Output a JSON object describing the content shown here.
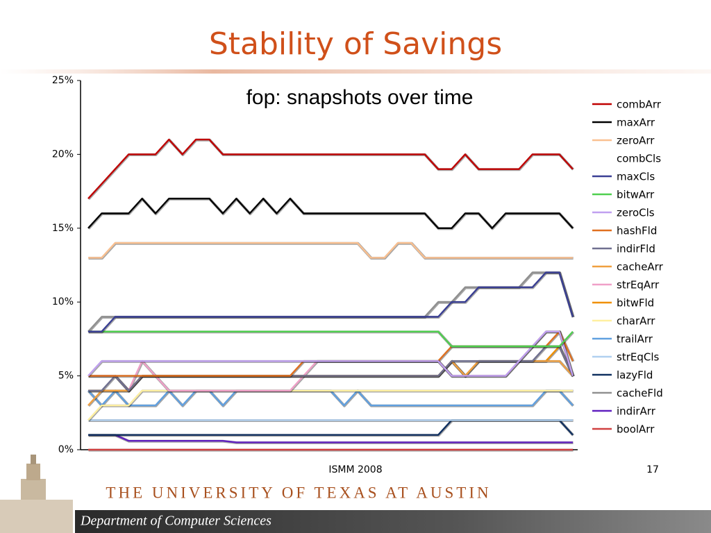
{
  "slide": {
    "title": "Stability of Savings",
    "footer": "ISMM 2008",
    "page_number": "17",
    "university": "THE UNIVERSITY OF TEXAS AT AUSTIN",
    "department": "Department of Computer Sciences"
  },
  "chart_data": {
    "type": "line",
    "title": "fop: snapshots over time",
    "categories": [
      null,
      null,
      null,
      null,
      null,
      null,
      null,
      null,
      null,
      null,
      null,
      null,
      null,
      null,
      null,
      null,
      null,
      null,
      null,
      null,
      null,
      null,
      null,
      null,
      null,
      null,
      null,
      null,
      null,
      null,
      null,
      null,
      null,
      null,
      null,
      null,
      null
    ],
    "ylim": [
      0,
      25
    ],
    "yticks": [
      {
        "value": 0,
        "label": "0%"
      },
      {
        "value": 5,
        "label": "5%"
      },
      {
        "value": 10,
        "label": "10%"
      },
      {
        "value": 15,
        "label": "15%"
      },
      {
        "value": 20,
        "label": "20%"
      },
      {
        "value": 25,
        "label": "25%"
      }
    ],
    "legend": "right",
    "series": [
      {
        "name": "combArr",
        "color": "#c00000",
        "values": [
          17,
          18,
          19,
          20,
          20,
          20,
          21,
          20,
          21,
          21,
          20,
          20,
          20,
          20,
          20,
          20,
          20,
          20,
          20,
          20,
          20,
          20,
          20,
          20,
          20,
          20,
          19,
          19,
          20,
          19,
          19,
          19,
          19,
          20,
          20,
          20,
          19
        ]
      },
      {
        "name": "maxArr",
        "color": "#000000",
        "values": [
          15,
          16,
          16,
          16,
          17,
          16,
          17,
          17,
          17,
          17,
          16,
          17,
          16,
          17,
          16,
          17,
          16,
          16,
          16,
          16,
          16,
          16,
          16,
          16,
          16,
          16,
          15,
          15,
          16,
          16,
          15,
          16,
          16,
          16,
          16,
          16,
          15
        ]
      },
      {
        "name": "zeroArr",
        "color": "#fac090",
        "values": [
          13,
          13,
          14,
          14,
          14,
          14,
          14,
          14,
          14,
          14,
          14,
          14,
          14,
          14,
          14,
          14,
          14,
          14,
          14,
          14,
          14,
          13,
          13,
          14,
          14,
          13,
          13,
          13,
          13,
          13,
          13,
          13,
          13,
          13,
          13,
          13,
          13
        ]
      },
      {
        "name": "combCls",
        "color": "#ffffff",
        "values": [
          null,
          null,
          null,
          null,
          null,
          null,
          null,
          null,
          null,
          null,
          null,
          null,
          null,
          null,
          null,
          null,
          null,
          null,
          null,
          null,
          null,
          null,
          null,
          null,
          null,
          null,
          null,
          null,
          null,
          null,
          null,
          null,
          null,
          null,
          null,
          null,
          null
        ]
      },
      {
        "name": "maxCls",
        "color": "#3a3f94",
        "values": [
          8,
          8,
          9,
          9,
          9,
          9,
          9,
          9,
          9,
          9,
          9,
          9,
          9,
          9,
          9,
          9,
          9,
          9,
          9,
          9,
          9,
          9,
          9,
          9,
          9,
          9,
          9,
          10,
          10,
          11,
          11,
          11,
          11,
          11,
          12,
          12,
          9
        ]
      },
      {
        "name": "bitwArr",
        "color": "#4fcf4f",
        "values": [
          8,
          8,
          8,
          8,
          8,
          8,
          8,
          8,
          8,
          8,
          8,
          8,
          8,
          8,
          8,
          8,
          8,
          8,
          8,
          8,
          8,
          8,
          8,
          8,
          8,
          8,
          8,
          7,
          7,
          7,
          7,
          7,
          7,
          7,
          7,
          7,
          8
        ]
      },
      {
        "name": "zeroCls",
        "color": "#c0a0f0",
        "values": [
          5,
          6,
          6,
          6,
          6,
          6,
          6,
          6,
          6,
          6,
          6,
          6,
          6,
          6,
          6,
          6,
          6,
          6,
          6,
          6,
          6,
          6,
          6,
          6,
          6,
          6,
          6,
          5,
          5,
          5,
          5,
          5,
          6,
          7,
          8,
          8,
          5
        ]
      },
      {
        "name": "hashFld",
        "color": "#e07020",
        "values": [
          5,
          5,
          5,
          5,
          5,
          5,
          5,
          5,
          5,
          5,
          5,
          5,
          5,
          5,
          5,
          5,
          6,
          6,
          6,
          6,
          6,
          6,
          6,
          6,
          6,
          6,
          6,
          7,
          7,
          7,
          7,
          7,
          7,
          7,
          7,
          8,
          6
        ]
      },
      {
        "name": "indirFld",
        "color": "#707090",
        "values": [
          4,
          4,
          5,
          4,
          5,
          5,
          5,
          5,
          5,
          5,
          5,
          5,
          5,
          5,
          5,
          5,
          5,
          5,
          5,
          5,
          5,
          5,
          5,
          5,
          5,
          5,
          5,
          6,
          6,
          6,
          6,
          6,
          6,
          6,
          7,
          7,
          5
        ]
      },
      {
        "name": "cacheArr",
        "color": "#f0a040",
        "values": [
          3,
          4,
          4,
          4,
          5,
          5,
          5,
          5,
          5,
          5,
          5,
          5,
          5,
          5,
          5,
          5,
          5,
          5,
          5,
          5,
          5,
          5,
          5,
          5,
          5,
          5,
          5,
          6,
          5,
          6,
          6,
          6,
          6,
          6,
          6,
          6,
          5
        ]
      },
      {
        "name": "strEqArr",
        "color": "#f0a0c8",
        "values": [
          5,
          5,
          5,
          4,
          6,
          5,
          4,
          4,
          4,
          4,
          4,
          4,
          4,
          4,
          4,
          4,
          5,
          6,
          6,
          6,
          6,
          6,
          6,
          6,
          6,
          6,
          6,
          5,
          5,
          5,
          5,
          5,
          6,
          7,
          8,
          8,
          5
        ]
      },
      {
        "name": "bitwFld",
        "color": "#f09000",
        "values": [
          4,
          4,
          4,
          4,
          5,
          5,
          5,
          5,
          5,
          5,
          5,
          5,
          5,
          5,
          5,
          5,
          5,
          5,
          5,
          5,
          5,
          5,
          5,
          5,
          5,
          5,
          5,
          6,
          5,
          6,
          6,
          6,
          6,
          6,
          6,
          7,
          5
        ]
      },
      {
        "name": "charArr",
        "color": "#fff0a0",
        "values": [
          2,
          3,
          3,
          3,
          4,
          4,
          4,
          4,
          4,
          4,
          4,
          4,
          4,
          4,
          4,
          4,
          4,
          4,
          4,
          4,
          4,
          4,
          4,
          4,
          4,
          4,
          4,
          4,
          4,
          4,
          4,
          4,
          4,
          4,
          4,
          4,
          4
        ]
      },
      {
        "name": "trailArr",
        "color": "#60a0e0",
        "values": [
          4,
          3,
          4,
          3,
          3,
          3,
          4,
          3,
          4,
          4,
          3,
          4,
          4,
          4,
          4,
          4,
          4,
          4,
          4,
          3,
          4,
          3,
          3,
          3,
          3,
          3,
          3,
          3,
          3,
          3,
          3,
          3,
          3,
          3,
          4,
          4,
          3
        ]
      },
      {
        "name": "strEqCls",
        "color": "#b0d0f0",
        "values": [
          2,
          2,
          2,
          2,
          2,
          2,
          2,
          2,
          2,
          2,
          2,
          2,
          2,
          2,
          2,
          2,
          2,
          2,
          2,
          2,
          2,
          2,
          2,
          2,
          2,
          2,
          2,
          2,
          2,
          2,
          2,
          2,
          2,
          2,
          2,
          2,
          2
        ]
      },
      {
        "name": "lazyFld",
        "color": "#103060",
        "values": [
          1,
          1,
          1,
          1,
          1,
          1,
          1,
          1,
          1,
          1,
          1,
          1,
          1,
          1,
          1,
          1,
          1,
          1,
          1,
          1,
          1,
          1,
          1,
          1,
          1,
          1,
          1,
          2,
          2,
          2,
          2,
          2,
          2,
          2,
          2,
          2,
          1
        ]
      },
      {
        "name": "cacheFld",
        "color": "#909090",
        "values": [
          8,
          9,
          9,
          9,
          9,
          9,
          9,
          9,
          9,
          9,
          9,
          9,
          9,
          9,
          9,
          9,
          9,
          9,
          9,
          9,
          9,
          9,
          9,
          9,
          9,
          9,
          10,
          10,
          11,
          11,
          11,
          11,
          11,
          12,
          12,
          12,
          9
        ]
      },
      {
        "name": "indirArr",
        "color": "#6020c0",
        "values": [
          1,
          1,
          1,
          0.6,
          0.6,
          0.6,
          0.6,
          0.6,
          0.6,
          0.6,
          0.6,
          0.5,
          0.5,
          0.5,
          0.5,
          0.5,
          0.5,
          0.5,
          0.5,
          0.5,
          0.5,
          0.5,
          0.5,
          0.5,
          0.5,
          0.5,
          0.5,
          0.5,
          0.5,
          0.5,
          0.5,
          0.5,
          0.5,
          0.5,
          0.5,
          0.5,
          0.5
        ]
      },
      {
        "name": "boolArr",
        "color": "#d04040",
        "values": [
          0,
          0,
          0,
          0,
          0,
          0,
          0,
          0,
          0,
          0,
          0,
          0,
          0,
          0,
          0,
          0,
          0,
          0,
          0,
          0,
          0,
          0,
          0,
          0,
          0,
          0,
          0,
          0,
          0,
          0,
          0,
          0,
          0,
          0,
          0,
          0,
          0
        ]
      }
    ]
  }
}
